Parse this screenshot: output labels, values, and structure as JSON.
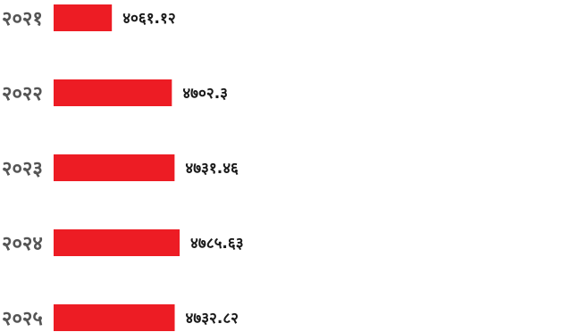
{
  "chart_data": {
    "type": "bar",
    "orientation": "horizontal",
    "title": "",
    "xlabel": "",
    "ylabel": "",
    "categories": [
      "२०२१",
      "२०२२",
      "२०२३",
      "२०२४",
      "२०२५"
    ],
    "values": [
      4061.12,
      4702.3,
      4731.46,
      4785.63,
      4732.82
    ],
    "value_labels": [
      "४०६१.१२",
      "४७०२.३",
      "४७३१.४६",
      "४७८५.६३",
      "४७३२.८२"
    ],
    "bar_color": "#ed1c24",
    "grid": false,
    "legend": "none"
  }
}
